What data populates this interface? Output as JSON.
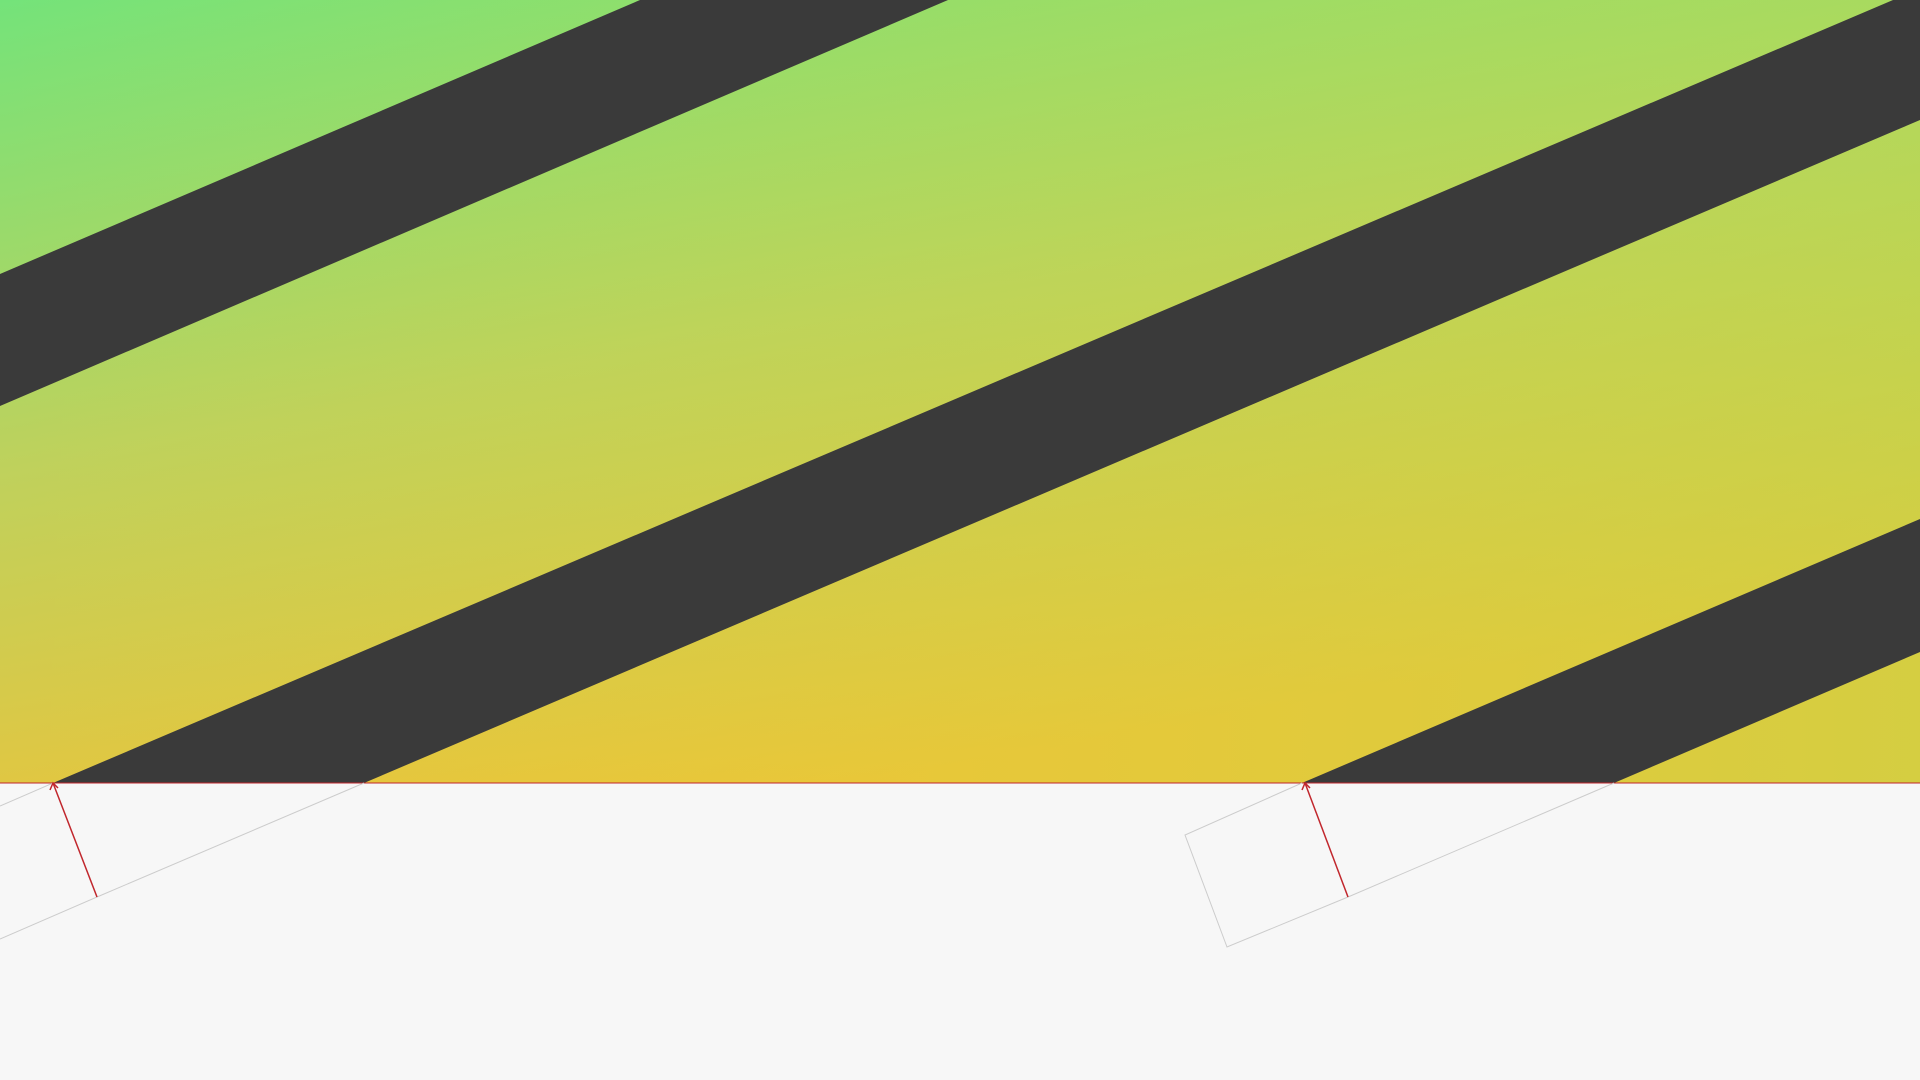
{
  "colors": {
    "background": "#f7f7f7",
    "gradient_top_left": "#74e37a",
    "gradient_top_right": "#a2e356",
    "gradient_center": "#bfd15c",
    "gradient_bottom_left": "#d6e23a",
    "gradient_bottom_right": "#f0c236",
    "stripe": "#3a3a3a",
    "guide_line": "#c1272d",
    "outline": "#cccccc"
  },
  "shapes": {
    "stripe_count": 3,
    "measurement_markers": 2,
    "reflection_outlines": 2
  }
}
